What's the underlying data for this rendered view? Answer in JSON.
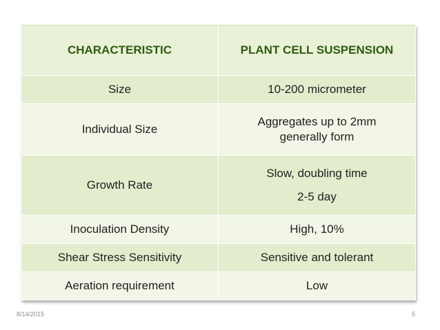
{
  "table": {
    "headers": [
      "CHARACTERISTIC",
      "PLANT CELL SUSPENSION"
    ],
    "rows": [
      {
        "characteristic": "Size",
        "value_lines": [
          "10-200 micrometer"
        ]
      },
      {
        "characteristic": "Individual Size",
        "value_lines": [
          "Aggregates up to 2mm",
          "generally form"
        ]
      },
      {
        "characteristic": "Growth Rate",
        "value_lines": [
          "Slow, doubling time",
          "2-5 day"
        ]
      },
      {
        "characteristic": "Inoculation Density",
        "value_lines": [
          "High, 10%"
        ]
      },
      {
        "characteristic": "Shear Stress Sensitivity",
        "value_lines": [
          "Sensitive and tolerant"
        ]
      },
      {
        "characteristic": "Aeration requirement",
        "value_lines": [
          "Low"
        ]
      }
    ]
  },
  "footer": {
    "date": "8/14/2015",
    "page_number": "5"
  },
  "colors": {
    "header_bg": "#e9f1d6",
    "header_text": "#2e5b12",
    "row_dark": "#e3edcd",
    "row_light": "#f1f6e6"
  }
}
